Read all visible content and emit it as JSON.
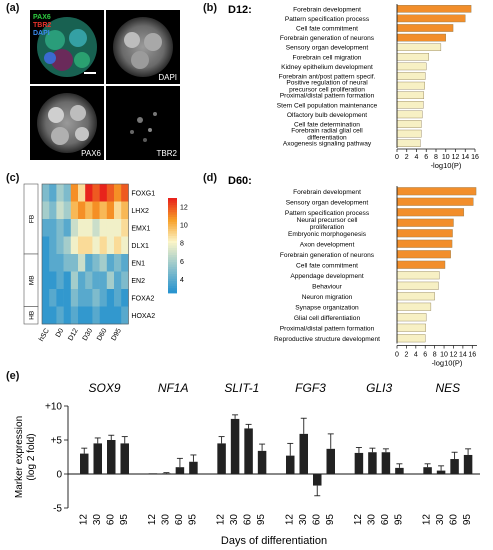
{
  "panel_labels": {
    "a": "(a)",
    "b": "(b)",
    "c": "(c)",
    "d": "(d)",
    "e": "(e)"
  },
  "micrographs": {
    "merged_channels": [
      {
        "label": "PAX6",
        "color": "#2ecc40"
      },
      {
        "label": "TBR2",
        "color": "#e8322b"
      },
      {
        "label": "DAPI",
        "color": "#3b8cf0"
      }
    ],
    "dapi_label": "DAPI",
    "pax6_label": "PAX6",
    "tbr2_label": "TBR2"
  },
  "colors": {
    "bar_orange": "#f28e2b",
    "bar_pale": "#f7f0c4",
    "bar_black": "#222222",
    "heat_high": "#e8241c",
    "heat_mid": "#fbf5c8",
    "heat_low": "#1f8fcf"
  },
  "chart_data": [
    {
      "id": "b",
      "type": "bar",
      "orientation": "horizontal",
      "title": "D12:",
      "xlabel": "-log10(P)",
      "xlim": [
        0,
        16
      ],
      "xticks": [
        0,
        2,
        4,
        6,
        8,
        10,
        12,
        14,
        16
      ],
      "categories": [
        "Forebrain development",
        "Pattern specification process",
        "Cell fate commitment",
        "Forebrain generation of neurons",
        "Sensory organ development",
        "Forebrain cell migration",
        "Kidney epithelium development",
        "Forebrain ant/post pattern specif.",
        "Positive regulation of neural precursor cell proliferation",
        "Proximal/distal pattern formation",
        "Stem Cell population maintenance",
        "Olfactory bulb development",
        "Cell fate determination",
        "Forebrain radial glial cell differentiation",
        "Axogenesis signaling pathway"
      ],
      "values": [
        15.2,
        14.0,
        11.5,
        10.0,
        9.0,
        6.5,
        6.0,
        5.8,
        5.7,
        5.5,
        5.4,
        5.2,
        5.0,
        5.0,
        4.8
      ],
      "highlight": [
        true,
        true,
        true,
        true,
        false,
        false,
        false,
        false,
        false,
        false,
        false,
        false,
        false,
        false,
        false
      ]
    },
    {
      "id": "d",
      "type": "bar",
      "orientation": "horizontal",
      "title": "D60:",
      "xlabel": "-log10(P)",
      "xlim": [
        0,
        17
      ],
      "xticks": [
        0,
        2,
        4,
        6,
        8,
        10,
        12,
        14,
        16
      ],
      "categories": [
        "Forebrain development",
        "Sensory organ development",
        "Pattern specification process",
        "Neural precursor cell proliferation",
        "Embryonic morphogenesis",
        "Axon development",
        "Forebrain generation of neurons",
        "Cell fate commitment",
        "Appendage development",
        "Behaviour",
        "Neuron migration",
        "Synapse organization",
        "Glial cell differentiation",
        "Proximal/distal pattern formation",
        "Reproductive structure development"
      ],
      "values": [
        16.8,
        16.2,
        14.2,
        12.0,
        11.8,
        11.7,
        11.4,
        10.2,
        9.0,
        8.8,
        8.0,
        7.2,
        6.2,
        6.1,
        6.0
      ],
      "highlight": [
        true,
        true,
        true,
        true,
        true,
        true,
        true,
        true,
        false,
        false,
        false,
        false,
        false,
        false,
        false
      ]
    },
    {
      "id": "c",
      "type": "heatmap",
      "rows": [
        "FOXG1",
        "LHX2",
        "EMX1",
        "DLX1",
        "EN1",
        "EN2",
        "FOXA2",
        "HOXA2"
      ],
      "columns": [
        "hSC",
        "D0",
        "D12",
        "D30",
        "D60",
        "D95"
      ],
      "sub_columns_per_group": 2,
      "row_groups": [
        {
          "label": "FB",
          "rows": 4
        },
        {
          "label": "MB",
          "rows": 3
        },
        {
          "label": "HB",
          "rows": 1
        }
      ],
      "colorbar_ticks": [
        4,
        6,
        8,
        10,
        12
      ],
      "zlim": [
        2.5,
        13
      ],
      "values": [
        [
          5,
          4,
          6,
          5,
          11,
          9,
          13,
          12,
          13,
          12,
          11,
          12
        ],
        [
          6,
          5,
          7,
          6,
          10,
          11,
          10,
          11,
          10,
          11,
          9,
          10
        ],
        [
          4,
          4,
          5,
          4,
          7,
          8,
          8,
          7,
          8,
          8,
          8,
          9
        ],
        [
          3,
          4,
          5,
          6,
          8,
          9,
          9,
          8,
          9,
          8,
          9,
          8
        ],
        [
          3,
          4,
          4,
          5,
          5,
          7,
          4,
          5,
          6,
          4,
          5,
          4
        ],
        [
          3,
          3,
          4,
          3,
          6,
          4,
          5,
          4,
          4,
          6,
          4,
          5
        ],
        [
          3,
          4,
          3,
          3,
          5,
          4,
          4,
          5,
          4,
          3,
          4,
          3
        ],
        [
          3,
          3,
          4,
          3,
          4,
          3,
          3,
          4,
          3,
          3,
          3,
          4
        ]
      ]
    },
    {
      "id": "e",
      "type": "bar",
      "orientation": "vertical",
      "title": "",
      "ylabel": "Marker expression\n(log 2 fold)",
      "xlabel": "Days of differentiation",
      "ylim": [
        -5,
        10
      ],
      "yticks": [
        -5,
        0,
        5,
        10
      ],
      "ytick_labels": [
        "-5",
        "0",
        "+5",
        "+10"
      ],
      "categories": [
        "12",
        "30",
        "60",
        "95"
      ],
      "series": [
        {
          "name": "SOX9",
          "values": [
            3.0,
            4.5,
            5.0,
            4.5
          ],
          "errors": [
            0.8,
            0.8,
            0.7,
            1.0
          ]
        },
        {
          "name": "NF1A",
          "values": [
            0.1,
            0.1,
            1.0,
            1.8
          ],
          "errors": [
            0.0,
            0.1,
            1.3,
            1.0
          ]
        },
        {
          "name": "SLIT-1",
          "values": [
            4.5,
            8.1,
            6.7,
            3.4
          ],
          "errors": [
            1.0,
            0.6,
            0.6,
            1.0
          ]
        },
        {
          "name": "FGF3",
          "values": [
            2.7,
            5.9,
            -1.7,
            3.7
          ],
          "errors": [
            1.8,
            2.3,
            1.5,
            2.2
          ]
        },
        {
          "name": "GLI3",
          "values": [
            3.1,
            3.2,
            3.2,
            0.9
          ],
          "errors": [
            0.8,
            0.6,
            0.5,
            0.6
          ]
        },
        {
          "name": "NES",
          "values": [
            1.0,
            0.5,
            2.2,
            2.8
          ],
          "errors": [
            0.5,
            0.7,
            1.0,
            0.9
          ]
        }
      ]
    }
  ]
}
